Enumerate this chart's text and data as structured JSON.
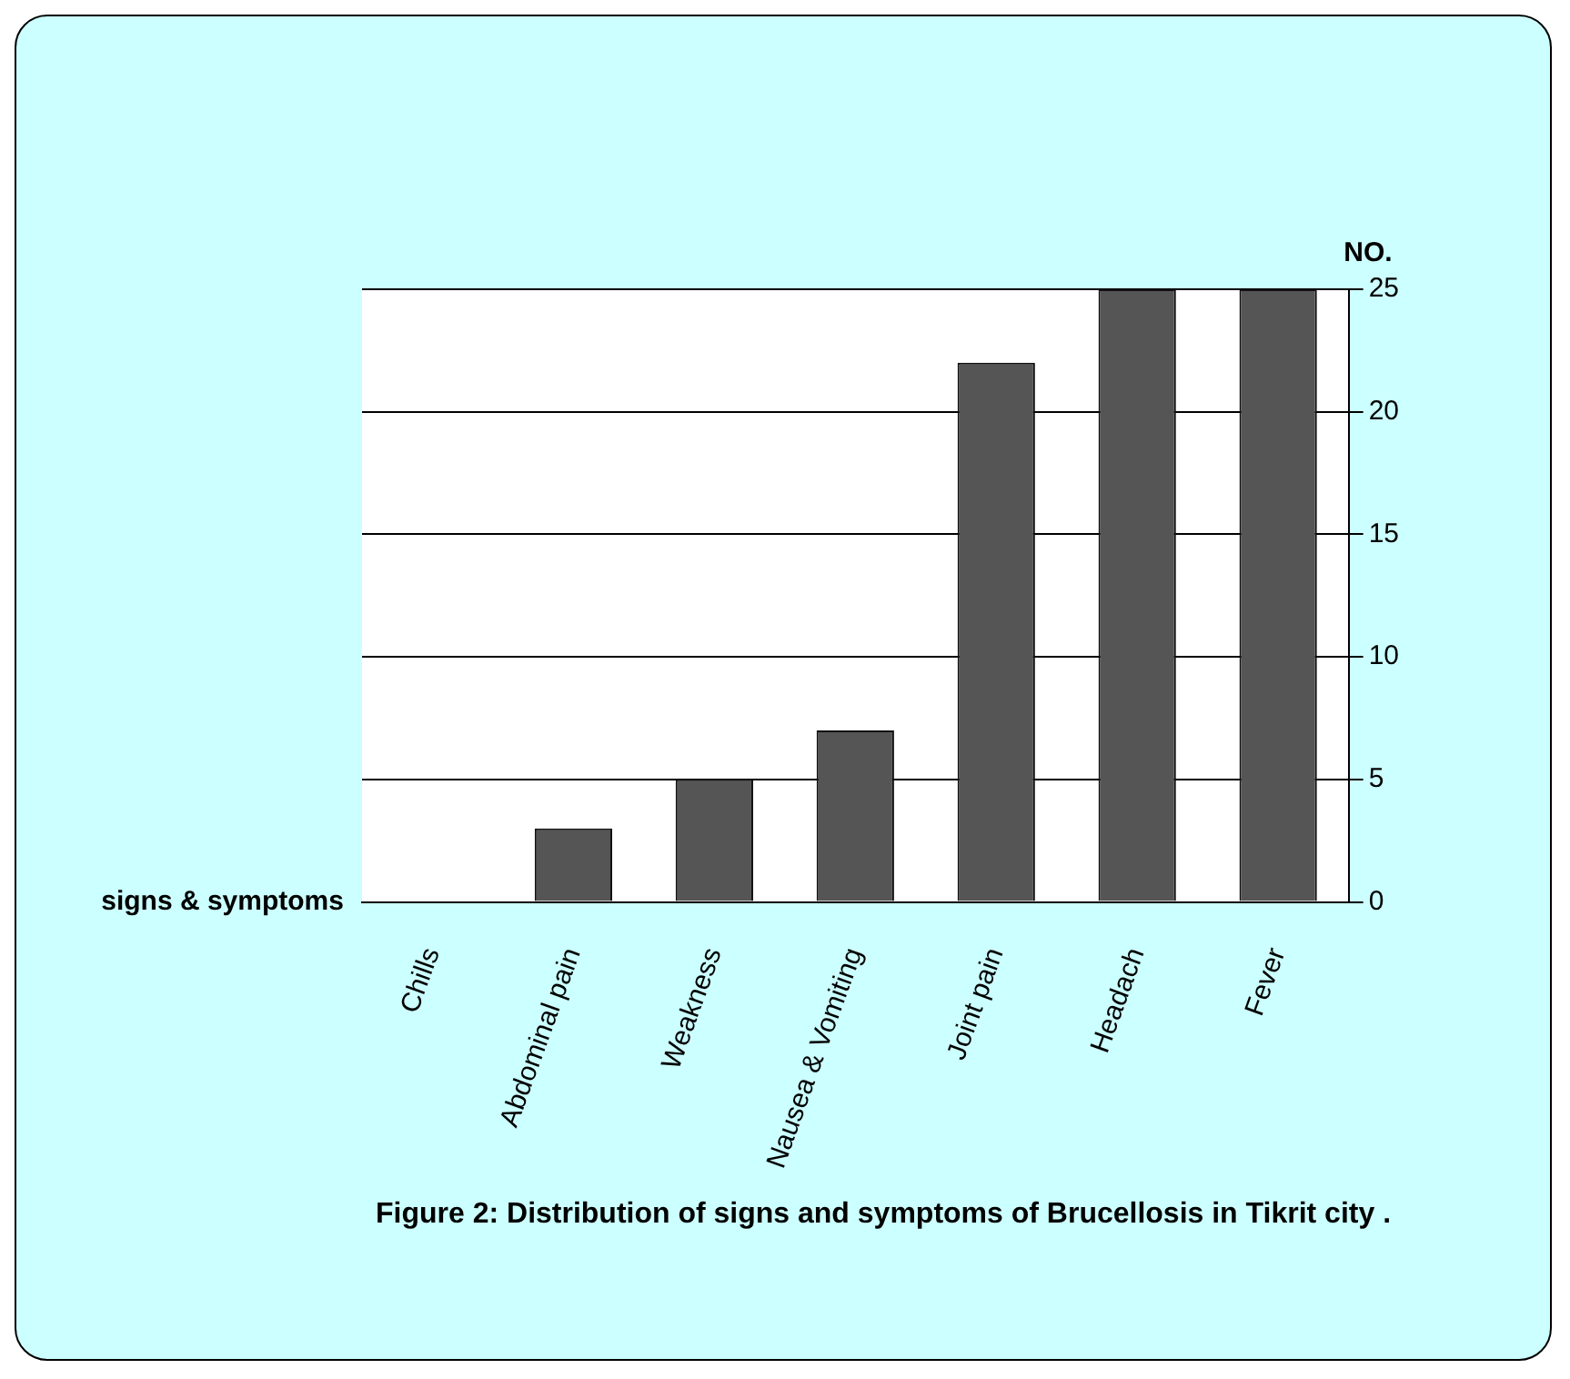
{
  "chart_data": {
    "type": "bar",
    "title": "Figure 2: Distribution of signs and symptoms of Brucellosis in Tikrit city .",
    "xlabel": "signs & symptoms",
    "ylabel": "NO.",
    "categories": [
      "Chills",
      "Abdominal pain",
      "Weakness",
      "Nausea & Vomiting",
      "Joint pain",
      "Headach",
      "Fever"
    ],
    "values": [
      0,
      3,
      5,
      7,
      22,
      25,
      25
    ],
    "color": "#555555",
    "ylim": [
      0,
      25
    ],
    "yticks": [
      0,
      5,
      10,
      15,
      20,
      25
    ],
    "grid": "y",
    "legend": false
  }
}
